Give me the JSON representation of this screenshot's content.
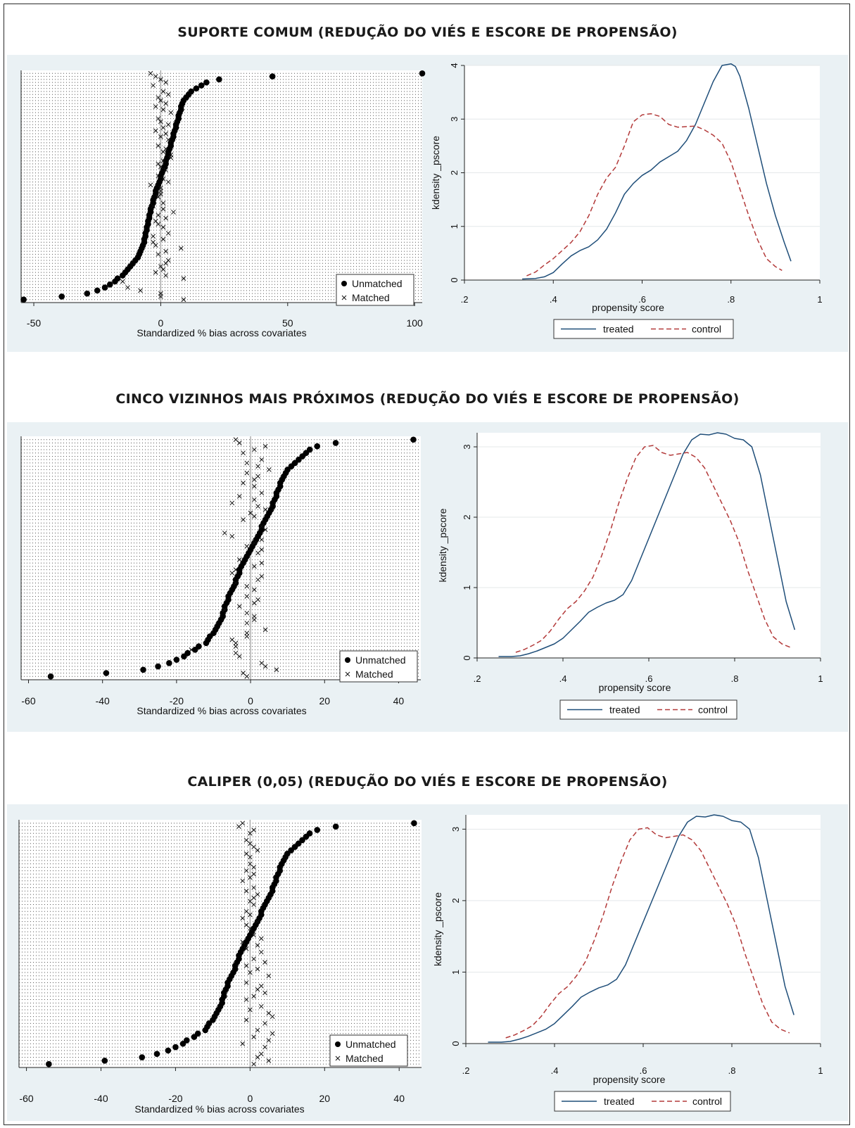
{
  "sections": [
    {
      "title": "SUPORTE COMUM (REDUÇÃO DO VIÉS E ESCORE DE PROPENSÃO)"
    },
    {
      "title": "CINCO VIZINHOS MAIS PRÓXIMOS (REDUÇÃO DO VIÉS E ESCORE DE PROPENSÃO)"
    },
    {
      "title": "CALIPER (0,05) (REDUÇÃO DO VIÉS E ESCORE DE PROPENSÃO)"
    }
  ],
  "colors": {
    "background": "#eaf1f4",
    "treated": "#1f4e79",
    "control": "#b33a3a",
    "points": "#000000"
  },
  "chart_data": [
    {
      "type": "scatter",
      "panel": "bias-1",
      "xlabel": "Standardized % bias across covariates",
      "ylabel": "",
      "xlim": [
        -55,
        103
      ],
      "xticks": [
        -50,
        0,
        50,
        100
      ],
      "legend": [
        "Unmatched",
        "Matched"
      ],
      "legend_position": "bottom-right",
      "series": [
        {
          "name": "Unmatched",
          "marker": "dot",
          "values": [
            -54,
            -39,
            -29,
            -25,
            -22,
            -20,
            -18,
            -17,
            -15,
            -14,
            -13,
            -12,
            -11,
            -10,
            -9,
            -8.5,
            -8,
            -7.5,
            -7,
            -6.5,
            -6.5,
            -6,
            -6,
            -5.5,
            -5.5,
            -5,
            -5,
            -4.5,
            -4.5,
            -4,
            -4,
            -3.5,
            -3,
            -3,
            -2.5,
            -2,
            -2,
            -1.5,
            -1,
            -0.5,
            0,
            0,
            0.5,
            1,
            1.5,
            2,
            2,
            2.5,
            3,
            3,
            3.5,
            4,
            4,
            4.5,
            5,
            5,
            5.5,
            6,
            6,
            6.5,
            7,
            7,
            7.5,
            8,
            8,
            8.5,
            9,
            10,
            11,
            12,
            14,
            16,
            18,
            23,
            44,
            103
          ]
        },
        {
          "name": "Matched",
          "marker": "x",
          "values": [
            -4,
            -2,
            0,
            2,
            -3,
            1,
            3,
            -1,
            0,
            2,
            -2,
            1,
            4,
            -1,
            0,
            3,
            1,
            -2,
            2,
            0,
            3,
            -1,
            2,
            1,
            4,
            4,
            1,
            -1,
            0,
            2,
            -1,
            1,
            3,
            -4,
            0,
            0,
            0,
            -1,
            1,
            -3,
            1,
            5,
            -1,
            2,
            -2,
            -1,
            1,
            3,
            -3,
            1,
            -3,
            -2,
            8,
            2,
            -1,
            3,
            2,
            0,
            1,
            -2,
            2,
            9,
            -15,
            -13,
            -8,
            0,
            0,
            9
          ]
        }
      ]
    },
    {
      "type": "line",
      "panel": "kdensity-1",
      "xlabel": "propensity score",
      "ylabel": "kdensity _pscore",
      "xlim": [
        0.2,
        1
      ],
      "ylim": [
        0,
        4
      ],
      "xticks": [
        ".2",
        ".4",
        ".6",
        ".8",
        "1"
      ],
      "yticks": [
        "0",
        "1",
        "2",
        "3",
        "4"
      ],
      "legend": [
        "treated",
        "control"
      ],
      "legend_position": "bottom",
      "series": [
        {
          "name": "treated",
          "style": "solid",
          "x": [
            0.33,
            0.36,
            0.38,
            0.4,
            0.42,
            0.44,
            0.46,
            0.48,
            0.5,
            0.52,
            0.54,
            0.56,
            0.58,
            0.6,
            0.62,
            0.64,
            0.66,
            0.68,
            0.7,
            0.72,
            0.74,
            0.76,
            0.78,
            0.8,
            0.81,
            0.82,
            0.84,
            0.86,
            0.88,
            0.9,
            0.92,
            0.935
          ],
          "y": [
            0.02,
            0.03,
            0.06,
            0.14,
            0.3,
            0.45,
            0.55,
            0.62,
            0.75,
            0.95,
            1.25,
            1.6,
            1.8,
            1.95,
            2.05,
            2.2,
            2.3,
            2.4,
            2.6,
            2.9,
            3.3,
            3.7,
            4.0,
            4.03,
            3.98,
            3.8,
            3.2,
            2.5,
            1.8,
            1.2,
            0.7,
            0.35
          ]
        },
        {
          "name": "control",
          "style": "dashed",
          "x": [
            0.34,
            0.36,
            0.38,
            0.4,
            0.42,
            0.44,
            0.46,
            0.48,
            0.5,
            0.52,
            0.54,
            0.56,
            0.58,
            0.6,
            0.62,
            0.64,
            0.66,
            0.68,
            0.7,
            0.72,
            0.74,
            0.76,
            0.78,
            0.8,
            0.82,
            0.84,
            0.86,
            0.88,
            0.9,
            0.915
          ],
          "y": [
            0.08,
            0.15,
            0.28,
            0.4,
            0.55,
            0.7,
            0.9,
            1.2,
            1.6,
            1.9,
            2.1,
            2.5,
            2.95,
            3.08,
            3.1,
            3.05,
            2.9,
            2.85,
            2.86,
            2.87,
            2.8,
            2.7,
            2.55,
            2.2,
            1.7,
            1.2,
            0.75,
            0.4,
            0.25,
            0.18
          ]
        }
      ]
    },
    {
      "type": "scatter",
      "panel": "bias-2",
      "xlabel": "Standardized % bias across covariates",
      "ylabel": "",
      "xlim": [
        -62,
        46
      ],
      "xticks": [
        -60,
        -40,
        -20,
        0,
        20,
        40
      ],
      "legend": [
        "Unmatched",
        "Matched"
      ],
      "legend_position": "bottom-right",
      "series": [
        {
          "name": "Unmatched",
          "marker": "dot",
          "values": [
            -54,
            -39,
            -29,
            -25,
            -22,
            -20,
            -18,
            -17,
            -15,
            -14,
            -12,
            -11.5,
            -11,
            -10,
            -9.5,
            -9,
            -8.5,
            -8,
            -7.5,
            -7.5,
            -7,
            -7,
            -6.5,
            -6,
            -6,
            -5.5,
            -5,
            -4.5,
            -4,
            -4,
            -3.5,
            -3,
            -3,
            -2.5,
            -2,
            -1.5,
            -1,
            -0.5,
            0,
            0.5,
            1,
            1.5,
            2,
            2.5,
            3,
            3,
            3.5,
            4,
            4.5,
            5,
            5.5,
            6,
            6,
            6.5,
            7,
            7,
            7.5,
            8,
            8,
            8.5,
            9,
            9.5,
            10,
            11,
            12,
            13,
            14,
            15,
            16,
            18,
            23,
            44
          ]
        },
        {
          "name": "Matched",
          "marker": "x",
          "values": [
            -4,
            -3,
            4,
            1,
            -2,
            3,
            -1,
            2,
            5,
            -1,
            2,
            1,
            -2,
            1,
            3,
            -3,
            1,
            -5,
            2,
            4,
            0,
            1,
            -2,
            3,
            4,
            -7,
            -5,
            3,
            1,
            -1,
            3,
            2,
            -3,
            3,
            1,
            -4,
            -5,
            3,
            2,
            -4,
            -1,
            1,
            -1,
            2,
            1,
            -3,
            -7,
            -1,
            1,
            1,
            -1,
            4,
            -1,
            -1,
            -5,
            -4,
            -4,
            -16,
            -4,
            -3,
            3,
            4,
            7,
            -2,
            -1
          ]
        }
      ]
    },
    {
      "type": "line",
      "panel": "kdensity-2",
      "xlabel": "propensity score",
      "ylabel": "kdensity _pscore",
      "xlim": [
        0.2,
        1
      ],
      "ylim": [
        0,
        3.2
      ],
      "xticks": [
        ".2",
        ".4",
        ".6",
        ".8",
        "1"
      ],
      "yticks": [
        "0",
        "1",
        "2",
        "3"
      ],
      "legend": [
        "treated",
        "control"
      ],
      "legend_position": "bottom",
      "series": [
        {
          "name": "treated",
          "style": "solid",
          "x": [
            0.25,
            0.28,
            0.3,
            0.32,
            0.34,
            0.36,
            0.38,
            0.4,
            0.42,
            0.44,
            0.46,
            0.48,
            0.5,
            0.52,
            0.54,
            0.56,
            0.58,
            0.6,
            0.62,
            0.64,
            0.66,
            0.68,
            0.7,
            0.72,
            0.74,
            0.76,
            0.78,
            0.8,
            0.82,
            0.84,
            0.86,
            0.88,
            0.9,
            0.92,
            0.94
          ],
          "y": [
            0.02,
            0.02,
            0.03,
            0.06,
            0.1,
            0.15,
            0.2,
            0.28,
            0.4,
            0.52,
            0.65,
            0.72,
            0.78,
            0.82,
            0.9,
            1.1,
            1.4,
            1.7,
            2.0,
            2.3,
            2.6,
            2.9,
            3.1,
            3.18,
            3.17,
            3.2,
            3.18,
            3.12,
            3.1,
            3.0,
            2.6,
            2.0,
            1.4,
            0.8,
            0.4
          ]
        },
        {
          "name": "control",
          "style": "dashed",
          "x": [
            0.29,
            0.31,
            0.33,
            0.35,
            0.37,
            0.39,
            0.41,
            0.43,
            0.45,
            0.47,
            0.49,
            0.51,
            0.53,
            0.55,
            0.57,
            0.59,
            0.61,
            0.63,
            0.65,
            0.67,
            0.69,
            0.71,
            0.73,
            0.75,
            0.77,
            0.79,
            0.81,
            0.83,
            0.85,
            0.87,
            0.89,
            0.91,
            0.93
          ],
          "y": [
            0.08,
            0.12,
            0.18,
            0.25,
            0.38,
            0.55,
            0.7,
            0.8,
            0.95,
            1.15,
            1.45,
            1.8,
            2.2,
            2.55,
            2.85,
            3.0,
            3.02,
            2.92,
            2.88,
            2.9,
            2.92,
            2.85,
            2.7,
            2.45,
            2.2,
            1.95,
            1.65,
            1.25,
            0.9,
            0.55,
            0.3,
            0.2,
            0.15
          ]
        }
      ]
    },
    {
      "type": "scatter",
      "panel": "bias-3",
      "xlabel": "Standardized % bias across covariates",
      "ylabel": "",
      "xlim": [
        -62,
        46
      ],
      "xticks": [
        -60,
        -40,
        -20,
        0,
        20,
        40
      ],
      "legend": [
        "Unmatched",
        "Matched"
      ],
      "legend_position": "bottom-right",
      "series": [
        {
          "name": "Unmatched",
          "marker": "dot",
          "values": [
            -54,
            -39,
            -29,
            -25,
            -22,
            -20,
            -18,
            -17,
            -15,
            -14,
            -12,
            -11.5,
            -11,
            -10,
            -9.5,
            -9,
            -8.5,
            -8,
            -7.5,
            -7.5,
            -7,
            -7,
            -6.5,
            -6,
            -6,
            -5.5,
            -5,
            -4.5,
            -4,
            -4,
            -3.5,
            -3,
            -3,
            -2.5,
            -2,
            -1.5,
            -1,
            -0.5,
            0,
            0.5,
            1,
            1.5,
            2,
            2.5,
            3,
            3,
            3.5,
            4,
            4.5,
            5,
            5.5,
            6,
            6,
            6.5,
            7,
            7,
            7.5,
            8,
            8,
            8.5,
            9,
            9.5,
            10,
            11,
            12,
            13,
            14,
            15,
            16,
            18,
            23,
            44
          ]
        },
        {
          "name": "Matched",
          "marker": "x",
          "values": [
            -2,
            -3,
            1,
            0,
            -1,
            0,
            1,
            2,
            -1,
            0,
            0,
            1,
            -1,
            1,
            0,
            -2,
            1,
            -1,
            2,
            1,
            0,
            1,
            -1,
            0,
            -2,
            2,
            -1,
            0,
            1,
            3,
            -2,
            2,
            -1,
            3,
            1,
            4,
            -1,
            2,
            0,
            5,
            -1,
            3,
            2,
            4,
            1,
            -1,
            3,
            0,
            5,
            6,
            -1,
            4,
            2,
            6,
            1,
            5,
            -2,
            4,
            3,
            2,
            5,
            1
          ]
        }
      ]
    },
    {
      "type": "line",
      "panel": "kdensity-3",
      "xlabel": "propensity score",
      "ylabel": "kdensity _pscore",
      "xlim": [
        0.2,
        1
      ],
      "ylim": [
        0,
        3.2
      ],
      "xticks": [
        ".2",
        ".4",
        ".6",
        ".8",
        "1"
      ],
      "yticks": [
        "0",
        "1",
        "2",
        "3"
      ],
      "legend": [
        "treated",
        "control"
      ],
      "legend_position": "bottom",
      "series": [
        {
          "name": "treated",
          "style": "solid",
          "x": [
            0.25,
            0.28,
            0.3,
            0.32,
            0.34,
            0.36,
            0.38,
            0.4,
            0.42,
            0.44,
            0.46,
            0.48,
            0.5,
            0.52,
            0.54,
            0.56,
            0.58,
            0.6,
            0.62,
            0.64,
            0.66,
            0.68,
            0.7,
            0.72,
            0.74,
            0.76,
            0.78,
            0.8,
            0.82,
            0.84,
            0.86,
            0.88,
            0.9,
            0.92,
            0.94
          ],
          "y": [
            0.02,
            0.02,
            0.03,
            0.06,
            0.1,
            0.15,
            0.2,
            0.28,
            0.4,
            0.52,
            0.65,
            0.72,
            0.78,
            0.82,
            0.9,
            1.1,
            1.4,
            1.7,
            2.0,
            2.3,
            2.6,
            2.9,
            3.1,
            3.18,
            3.17,
            3.2,
            3.18,
            3.12,
            3.1,
            3.0,
            2.6,
            2.0,
            1.4,
            0.8,
            0.4
          ]
        },
        {
          "name": "control",
          "style": "dashed",
          "x": [
            0.29,
            0.31,
            0.33,
            0.35,
            0.37,
            0.39,
            0.41,
            0.43,
            0.45,
            0.47,
            0.49,
            0.51,
            0.53,
            0.55,
            0.57,
            0.59,
            0.61,
            0.63,
            0.65,
            0.67,
            0.69,
            0.71,
            0.73,
            0.75,
            0.77,
            0.79,
            0.81,
            0.83,
            0.85,
            0.87,
            0.89,
            0.91,
            0.93
          ],
          "y": [
            0.08,
            0.12,
            0.18,
            0.25,
            0.38,
            0.55,
            0.7,
            0.8,
            0.95,
            1.15,
            1.45,
            1.8,
            2.2,
            2.55,
            2.85,
            3.0,
            3.02,
            2.92,
            2.88,
            2.9,
            2.92,
            2.85,
            2.7,
            2.45,
            2.2,
            1.95,
            1.65,
            1.25,
            0.9,
            0.55,
            0.3,
            0.2,
            0.15
          ]
        }
      ]
    }
  ]
}
